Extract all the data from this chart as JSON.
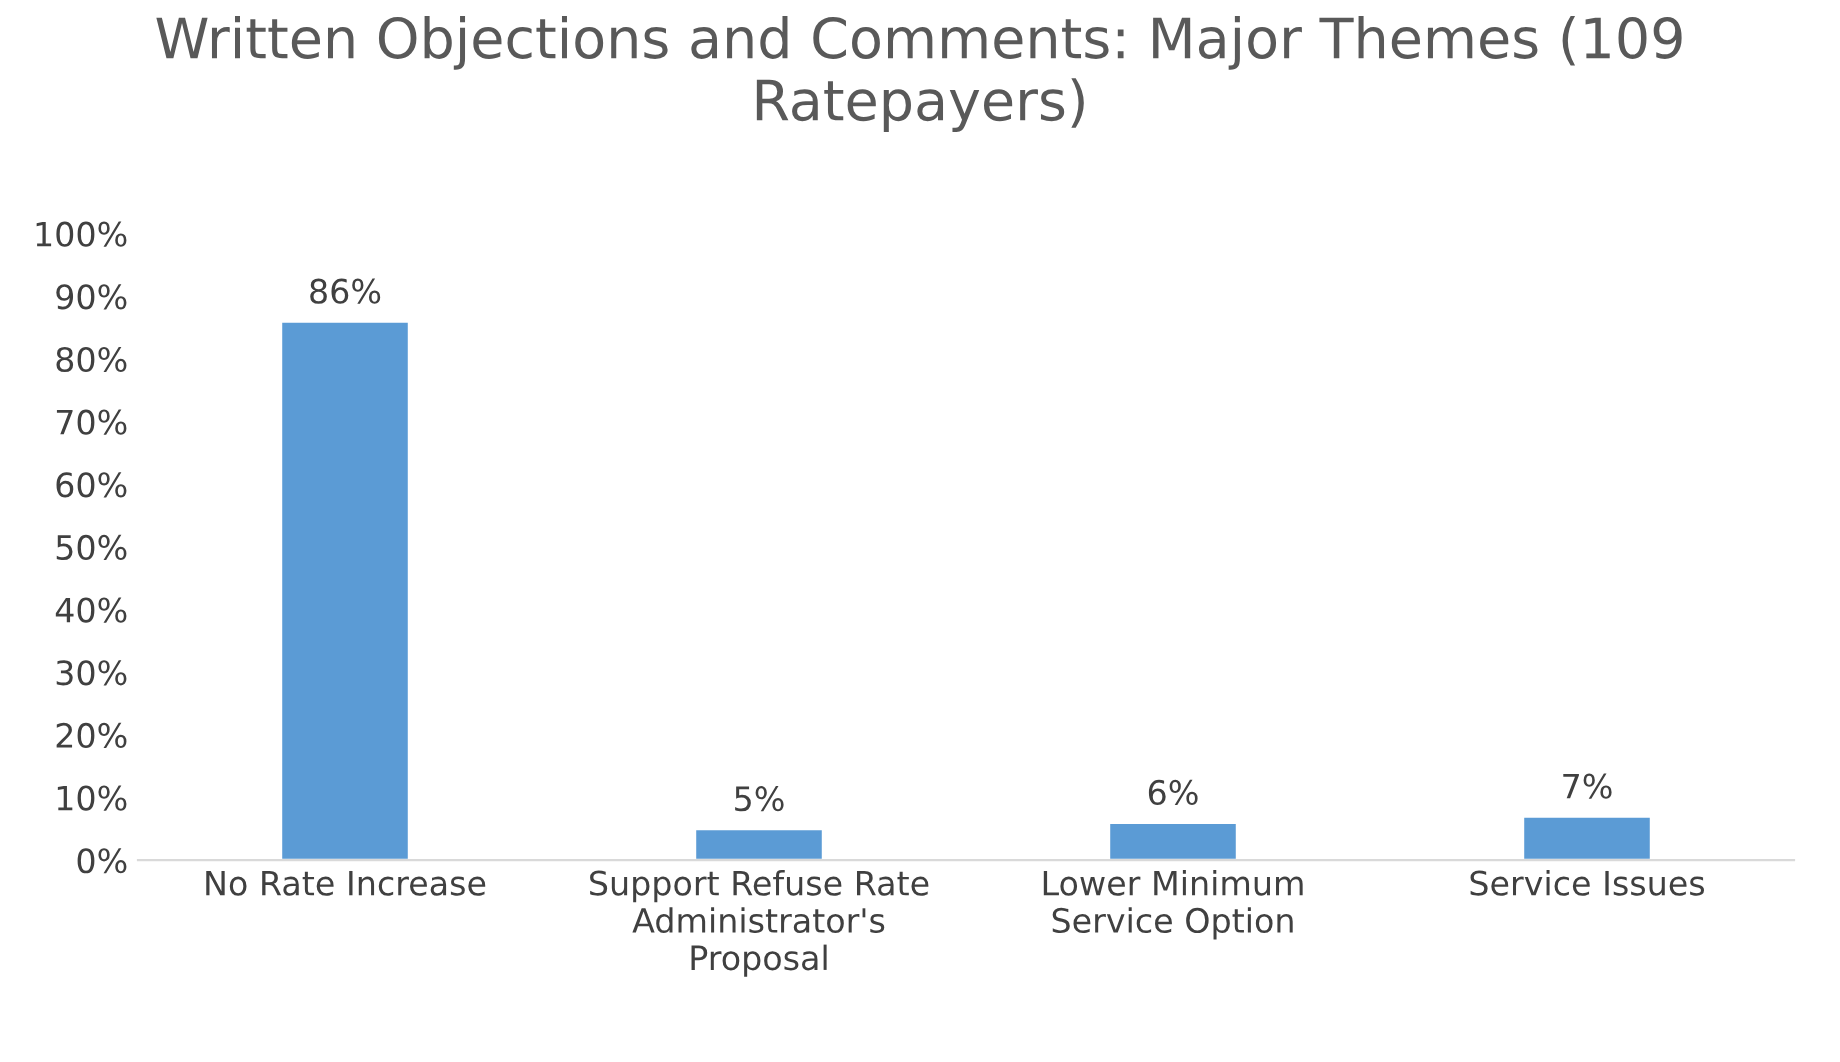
{
  "chart_data": {
    "type": "bar",
    "title": "Written Objections and Comments: Major Themes (109 Ratepayers)",
    "categories": [
      "No Rate Increase",
      "Support Refuse Rate\nAdministrator's\nProposal",
      "Lower Minimum\nService Option",
      "Service Issues"
    ],
    "values": [
      86,
      5,
      6,
      7
    ],
    "color": "#5b9bd5",
    "value_labels": [
      "86%",
      "5%",
      "6%",
      "7%"
    ],
    "ylim": [
      0,
      100
    ],
    "yticks": [
      {
        "value": 0,
        "label": "0%"
      },
      {
        "value": 10,
        "label": "10%"
      },
      {
        "value": 20,
        "label": "20%"
      },
      {
        "value": 30,
        "label": "30%"
      },
      {
        "value": 40,
        "label": "40%"
      },
      {
        "value": 50,
        "label": "50%"
      },
      {
        "value": 60,
        "label": "60%"
      },
      {
        "value": 70,
        "label": "70%"
      },
      {
        "value": 80,
        "label": "80%"
      },
      {
        "value": 90,
        "label": "90%"
      },
      {
        "value": 100,
        "label": "100%"
      }
    ],
    "grid": false,
    "legend": false
  }
}
